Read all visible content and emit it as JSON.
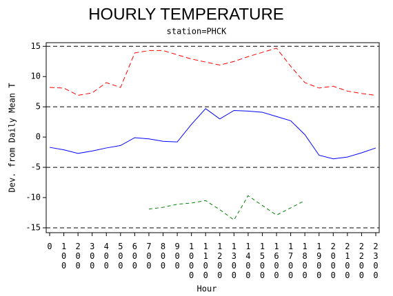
{
  "chart_data": {
    "type": "line",
    "title": "HOURLY TEMPERATURE",
    "subtitle": "station=PHCK",
    "x_label": "Hour",
    "y_label": "Dev. from Daily Mean T",
    "categories": [
      "0",
      "100",
      "200",
      "300",
      "400",
      "500",
      "600",
      "700",
      "800",
      "900",
      "1000",
      "1100",
      "1200",
      "1300",
      "1400",
      "1500",
      "1600",
      "1700",
      "1800",
      "1900",
      "2000",
      "2100",
      "2200",
      "2300"
    ],
    "series": [
      {
        "color": "#ff0000",
        "dash": "7,4",
        "values": [
          8.2,
          8.1,
          6.9,
          7.3,
          9.0,
          8.2,
          13.9,
          14.3,
          14.3,
          13.6,
          12.9,
          12.4,
          11.9,
          12.5,
          13.3,
          14.0,
          14.7,
          11.7,
          9.0,
          8.1,
          8.4,
          7.6,
          7.2,
          6.9
        ]
      },
      {
        "color": "#0000ff",
        "dash": "none",
        "values": [
          -1.7,
          -2.1,
          -2.7,
          -2.3,
          -1.8,
          -1.4,
          -0.1,
          -0.3,
          -0.7,
          -0.8,
          2.1,
          4.7,
          3.0,
          4.4,
          4.3,
          4.1,
          3.4,
          2.7,
          0.4,
          -3.0,
          -3.6,
          -3.3,
          -2.6,
          -1.8
        ]
      },
      {
        "color": "#008000",
        "dash": "5,4",
        "values": [
          null,
          null,
          null,
          null,
          null,
          null,
          null,
          -11.9,
          -11.6,
          -11.1,
          -10.9,
          -10.5,
          -12.0,
          -13.7,
          -9.7,
          -11.3,
          -12.9,
          -11.7,
          -10.5,
          null,
          null,
          null,
          null,
          null
        ]
      }
    ],
    "ylim": [
      -15.8,
      15.6
    ],
    "yticks": [
      -15,
      -10,
      -5,
      0,
      5,
      10,
      15
    ],
    "reference_lines": [
      15,
      5,
      -5,
      -15
    ]
  }
}
